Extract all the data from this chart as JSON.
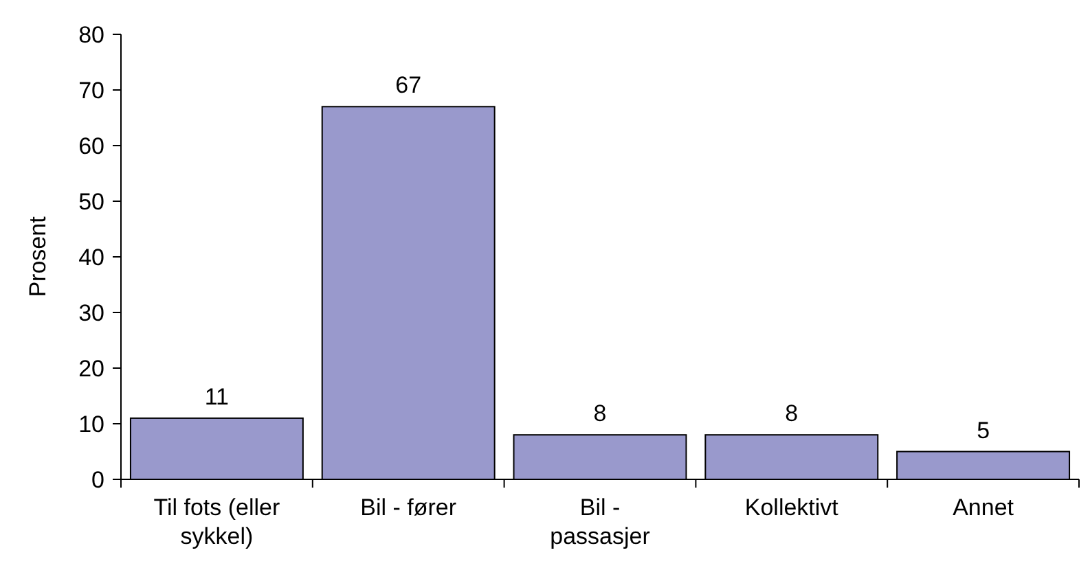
{
  "chart_data": {
    "type": "bar",
    "ylabel": "Prosent",
    "categories": [
      "Til fots (eller sykkel)",
      "Bil - fører",
      "Bil - passasjer",
      "Kollektivt",
      "Annet"
    ],
    "values": [
      11,
      67,
      8,
      8,
      5
    ],
    "color": "#9999cc",
    "data_labels": true,
    "ylim": [
      0,
      80
    ],
    "yticks": [
      0,
      10,
      20,
      30,
      40,
      50,
      60,
      70,
      80
    ],
    "grid": false
  }
}
